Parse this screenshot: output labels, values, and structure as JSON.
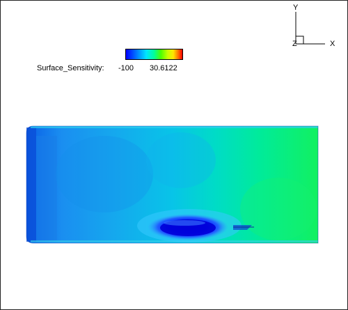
{
  "axes": {
    "y_label": "Y",
    "x_label": "X",
    "z_label": "Z"
  },
  "legend": {
    "variable": "Surface_Sensitivity:",
    "min_label": "-100",
    "max_label": "30.6122",
    "colormap": [
      "#0000ff",
      "#0099ff",
      "#00e5ff",
      "#00ff9a",
      "#4cff00",
      "#ffe600",
      "#ff7a00",
      "#ff0000"
    ]
  }
}
